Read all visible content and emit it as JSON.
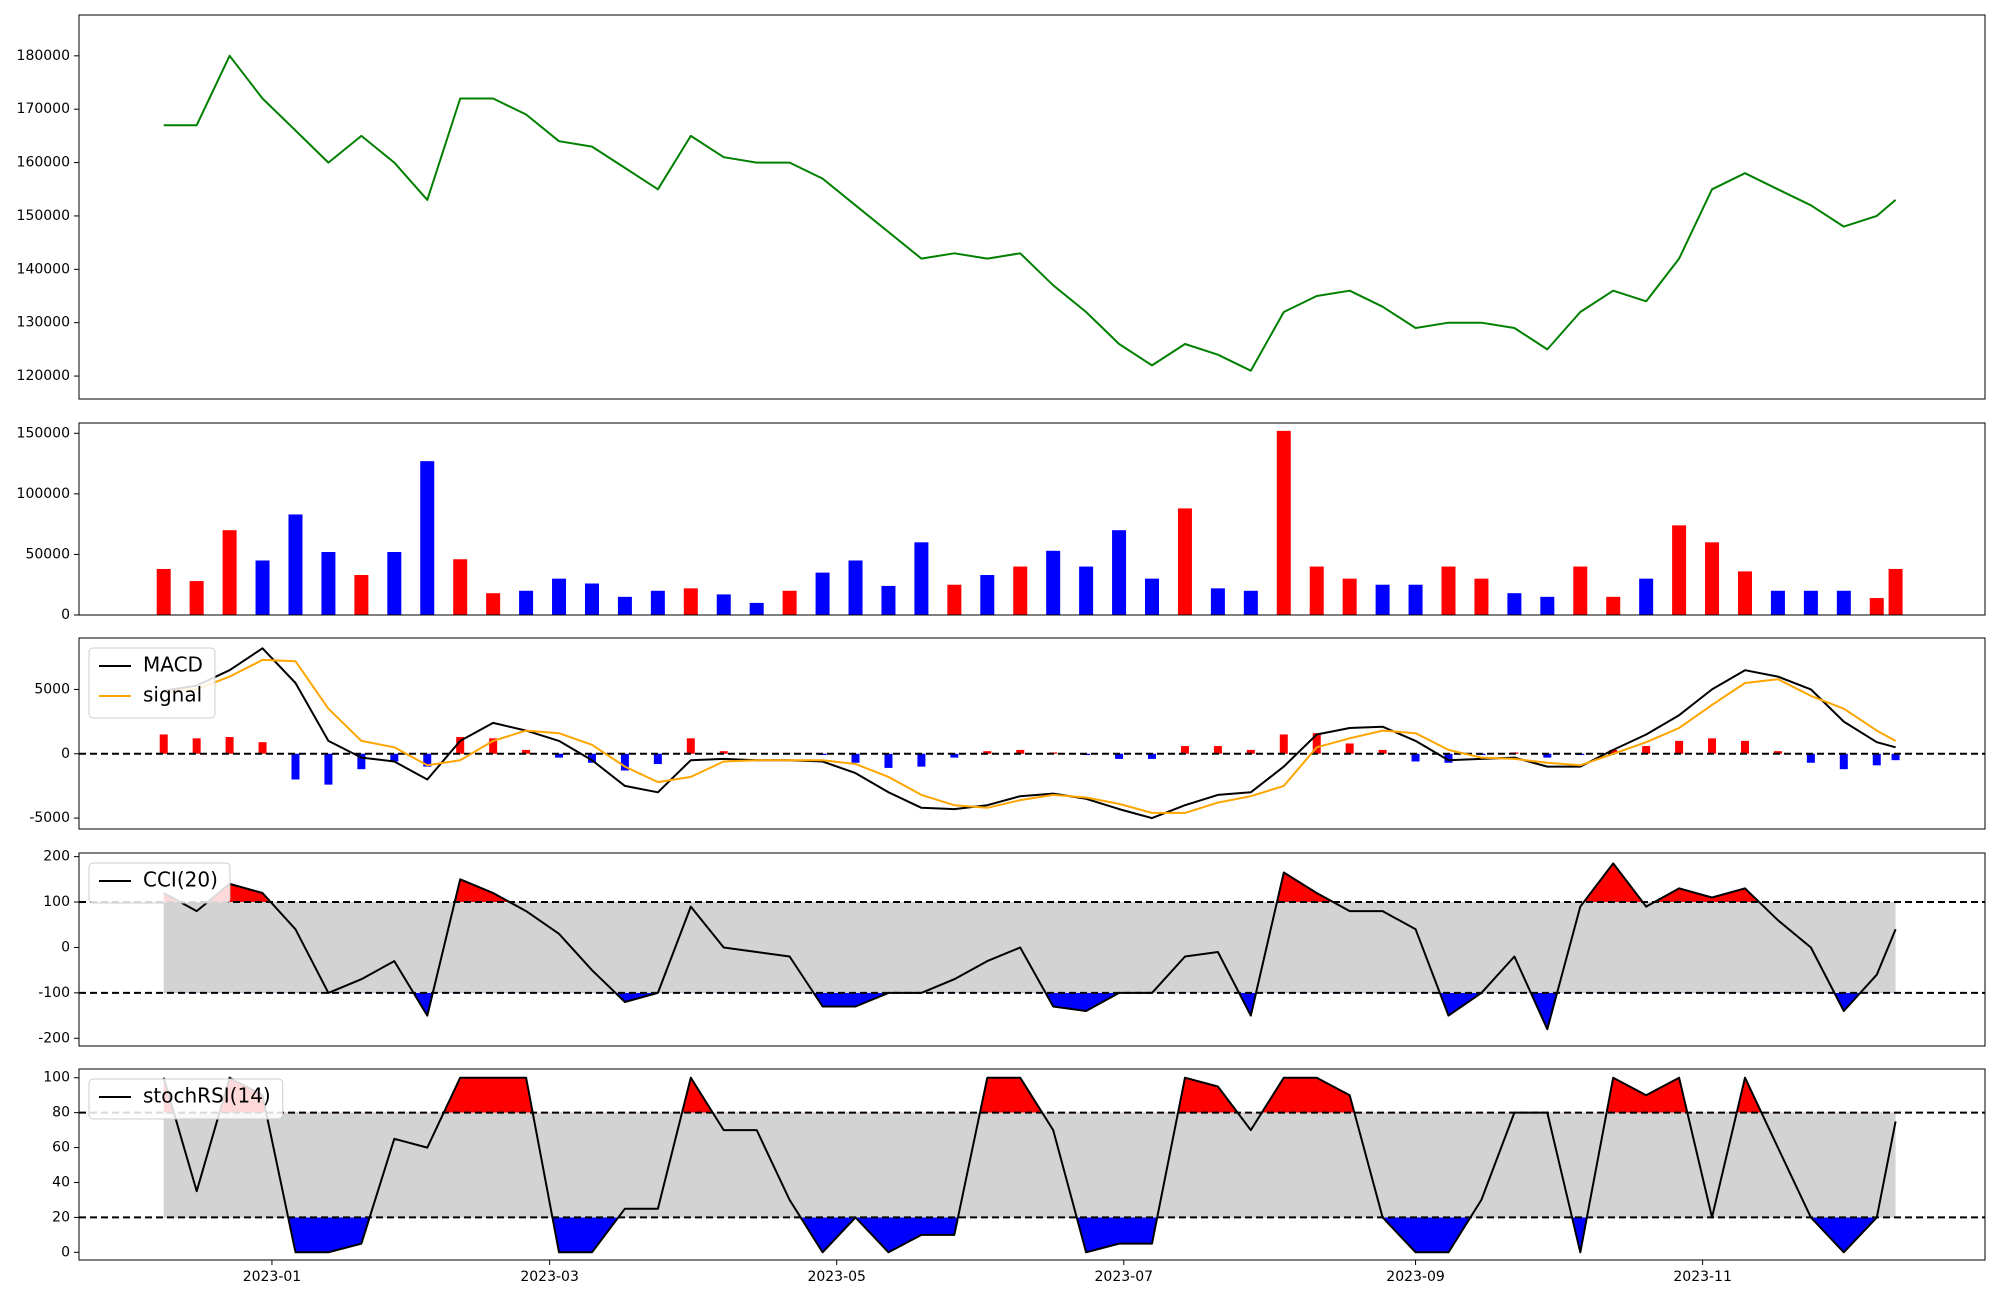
{
  "chart_data": [
    {
      "type": "line",
      "color": "#008000",
      "x": [
        -23,
        -16,
        -9,
        -2,
        5,
        12,
        19,
        26,
        33,
        40,
        47,
        54,
        61,
        68,
        75,
        82,
        89,
        96,
        103,
        110,
        117,
        124,
        131,
        138,
        145,
        152,
        159,
        166,
        173,
        180,
        187,
        194,
        201,
        208,
        215,
        222,
        229,
        236,
        243,
        250,
        257,
        264,
        271,
        278,
        285,
        292,
        299,
        306,
        313,
        320,
        327,
        334,
        341,
        345
      ],
      "values": [
        167000,
        167000,
        180000,
        172000,
        166000,
        160000,
        165000,
        160000,
        153000,
        172000,
        172000,
        169000,
        164000,
        163000,
        159000,
        155000,
        165000,
        161000,
        160000,
        160000,
        157000,
        152000,
        147000,
        142000,
        143000,
        142000,
        143000,
        137000,
        132000,
        126000,
        122000,
        126000,
        124000,
        121000,
        132000,
        135000,
        136000,
        133000,
        129000,
        130000,
        130000,
        129000,
        125000,
        132000,
        136000,
        134000,
        142000,
        155000,
        158000,
        155000,
        152000,
        148000,
        150000,
        153000
      ],
      "ylim": [
        115700,
        187650
      ],
      "yticks": [
        120000,
        130000,
        140000,
        150000,
        160000,
        170000,
        180000
      ]
    },
    {
      "type": "bar",
      "up_color": "red",
      "down_color": "blue",
      "values": [
        38000,
        28000,
        70000,
        45000,
        83000,
        52000,
        33000,
        52000,
        127000,
        46000,
        18000,
        20000,
        30000,
        26000,
        15000,
        20000,
        22000,
        17000,
        10000,
        20000,
        35000,
        45000,
        24000,
        60000,
        25000,
        33000,
        40000,
        53000,
        40000,
        70000,
        30000,
        88000,
        22000,
        20000,
        152000,
        40000,
        30000,
        25000,
        25000,
        40000,
        30000,
        18000,
        15000,
        40000,
        15000,
        30000,
        74000,
        60000,
        36000,
        20000,
        20000,
        20000,
        14000,
        38000
      ],
      "ylim": [
        0,
        158500
      ],
      "yticks": [
        0,
        50000,
        100000,
        150000
      ]
    },
    {
      "type": "macd",
      "legend": "upper left",
      "hlines": [
        0
      ],
      "series": [
        {
          "name": "MACD",
          "color": "black",
          "values": [
            4900,
            5300,
            6500,
            8200,
            5500,
            1000,
            -300,
            -600,
            -2000,
            1000,
            2400,
            1800,
            1000,
            -500,
            -2500,
            -3000,
            -500,
            -400,
            -500,
            -500,
            -600,
            -1500,
            -3000,
            -4200,
            -4300,
            -4000,
            -3300,
            -3100,
            -3500,
            -4300,
            -5000,
            -4000,
            -3200,
            -3000,
            -1000,
            1500,
            2000,
            2100,
            1000,
            -500,
            -400,
            -300,
            -1000,
            -1000,
            300,
            1500,
            3000,
            5000,
            6500,
            6000,
            5000,
            2500,
            900,
            500
          ]
        },
        {
          "name": "signal",
          "color": "orange",
          "values": [
            4800,
            5000,
            6000,
            7300,
            7200,
            3500,
            1000,
            500,
            -900,
            -500,
            1000,
            1800,
            1600,
            700,
            -1000,
            -2200,
            -1800,
            -600,
            -500,
            -500,
            -500,
            -800,
            -1800,
            -3200,
            -4000,
            -4200,
            -3600,
            -3200,
            -3400,
            -3900,
            -4600,
            -4600,
            -3800,
            -3300,
            -2500,
            500,
            1200,
            1800,
            1600,
            300,
            -300,
            -400,
            -700,
            -900,
            0,
            900,
            2000,
            3800,
            5500,
            5800,
            4500,
            3500,
            1800,
            1000
          ]
        }
      ],
      "histogram": {
        "pos_color": "red",
        "neg_color": "blue",
        "values": [
          1500,
          1200,
          1300,
          900,
          -2000,
          -2400,
          -1200,
          -600,
          -1000,
          1300,
          1200,
          300,
          -300,
          -700,
          -1300,
          -800,
          1200,
          200,
          0,
          0,
          -100,
          -700,
          -1100,
          -1000,
          -300,
          200,
          300,
          100,
          -100,
          -400,
          -400,
          600,
          600,
          300,
          1500,
          1600,
          800,
          300,
          -600,
          -700,
          -100,
          100,
          -300,
          -100,
          300,
          600,
          1000,
          1200,
          1000,
          200,
          -700,
          -1200,
          -900,
          -500
        ]
      },
      "ylim": [
        -5850,
        9000
      ],
      "yticks": [
        -5000,
        0,
        5000
      ]
    },
    {
      "type": "band",
      "legend": "upper left",
      "bounds": [
        -100,
        100
      ],
      "band_color": "lightgray",
      "upper_color": "red",
      "lower_color": "blue",
      "series": [
        {
          "name": "CCI(20)",
          "color": "black",
          "values": [
            120,
            80,
            140,
            120,
            40,
            -100,
            -70,
            -30,
            -150,
            150,
            120,
            80,
            30,
            -50,
            -120,
            -100,
            90,
            0,
            -10,
            -20,
            -130,
            -130,
            -100,
            -100,
            -70,
            -30,
            0,
            -130,
            -140,
            -100,
            -100,
            -20,
            -10,
            -150,
            165,
            120,
            80,
            80,
            40,
            -150,
            -100,
            -20,
            -180,
            90,
            185,
            90,
            130,
            110,
            130,
            60,
            0,
            -140,
            -60,
            40
          ]
        }
      ],
      "ylim": [
        -217,
        208
      ],
      "yticks": [
        -200,
        -100,
        0,
        100,
        200
      ]
    },
    {
      "type": "band",
      "legend": "upper left",
      "bounds": [
        20,
        80
      ],
      "band_color": "lightgray",
      "upper_color": "red",
      "lower_color": "blue",
      "series": [
        {
          "name": "stochRSI(14)",
          "color": "black",
          "values": [
            100,
            35,
            100,
            90,
            0,
            0,
            5,
            65,
            60,
            100,
            100,
            100,
            0,
            0,
            25,
            25,
            100,
            70,
            70,
            30,
            0,
            20,
            0,
            10,
            10,
            100,
            100,
            70,
            0,
            5,
            5,
            100,
            95,
            70,
            100,
            100,
            90,
            20,
            0,
            0,
            30,
            80,
            80,
            0,
            100,
            90,
            100,
            20,
            100,
            60,
            20,
            0,
            20,
            75
          ]
        }
      ],
      "ylim": [
        -4.4,
        105
      ],
      "yticks": [
        0,
        20,
        40,
        60,
        80,
        100
      ],
      "xlim": [
        -41,
        364
      ],
      "xticks": [
        {
          "value": 0,
          "label": "2023-01"
        },
        {
          "value": 59,
          "label": "2023-03"
        },
        {
          "value": 120,
          "label": "2023-05"
        },
        {
          "value": 181,
          "label": "2023-07"
        },
        {
          "value": 243,
          "label": "2023-09"
        },
        {
          "value": 304,
          "label": "2023-11"
        }
      ]
    }
  ]
}
